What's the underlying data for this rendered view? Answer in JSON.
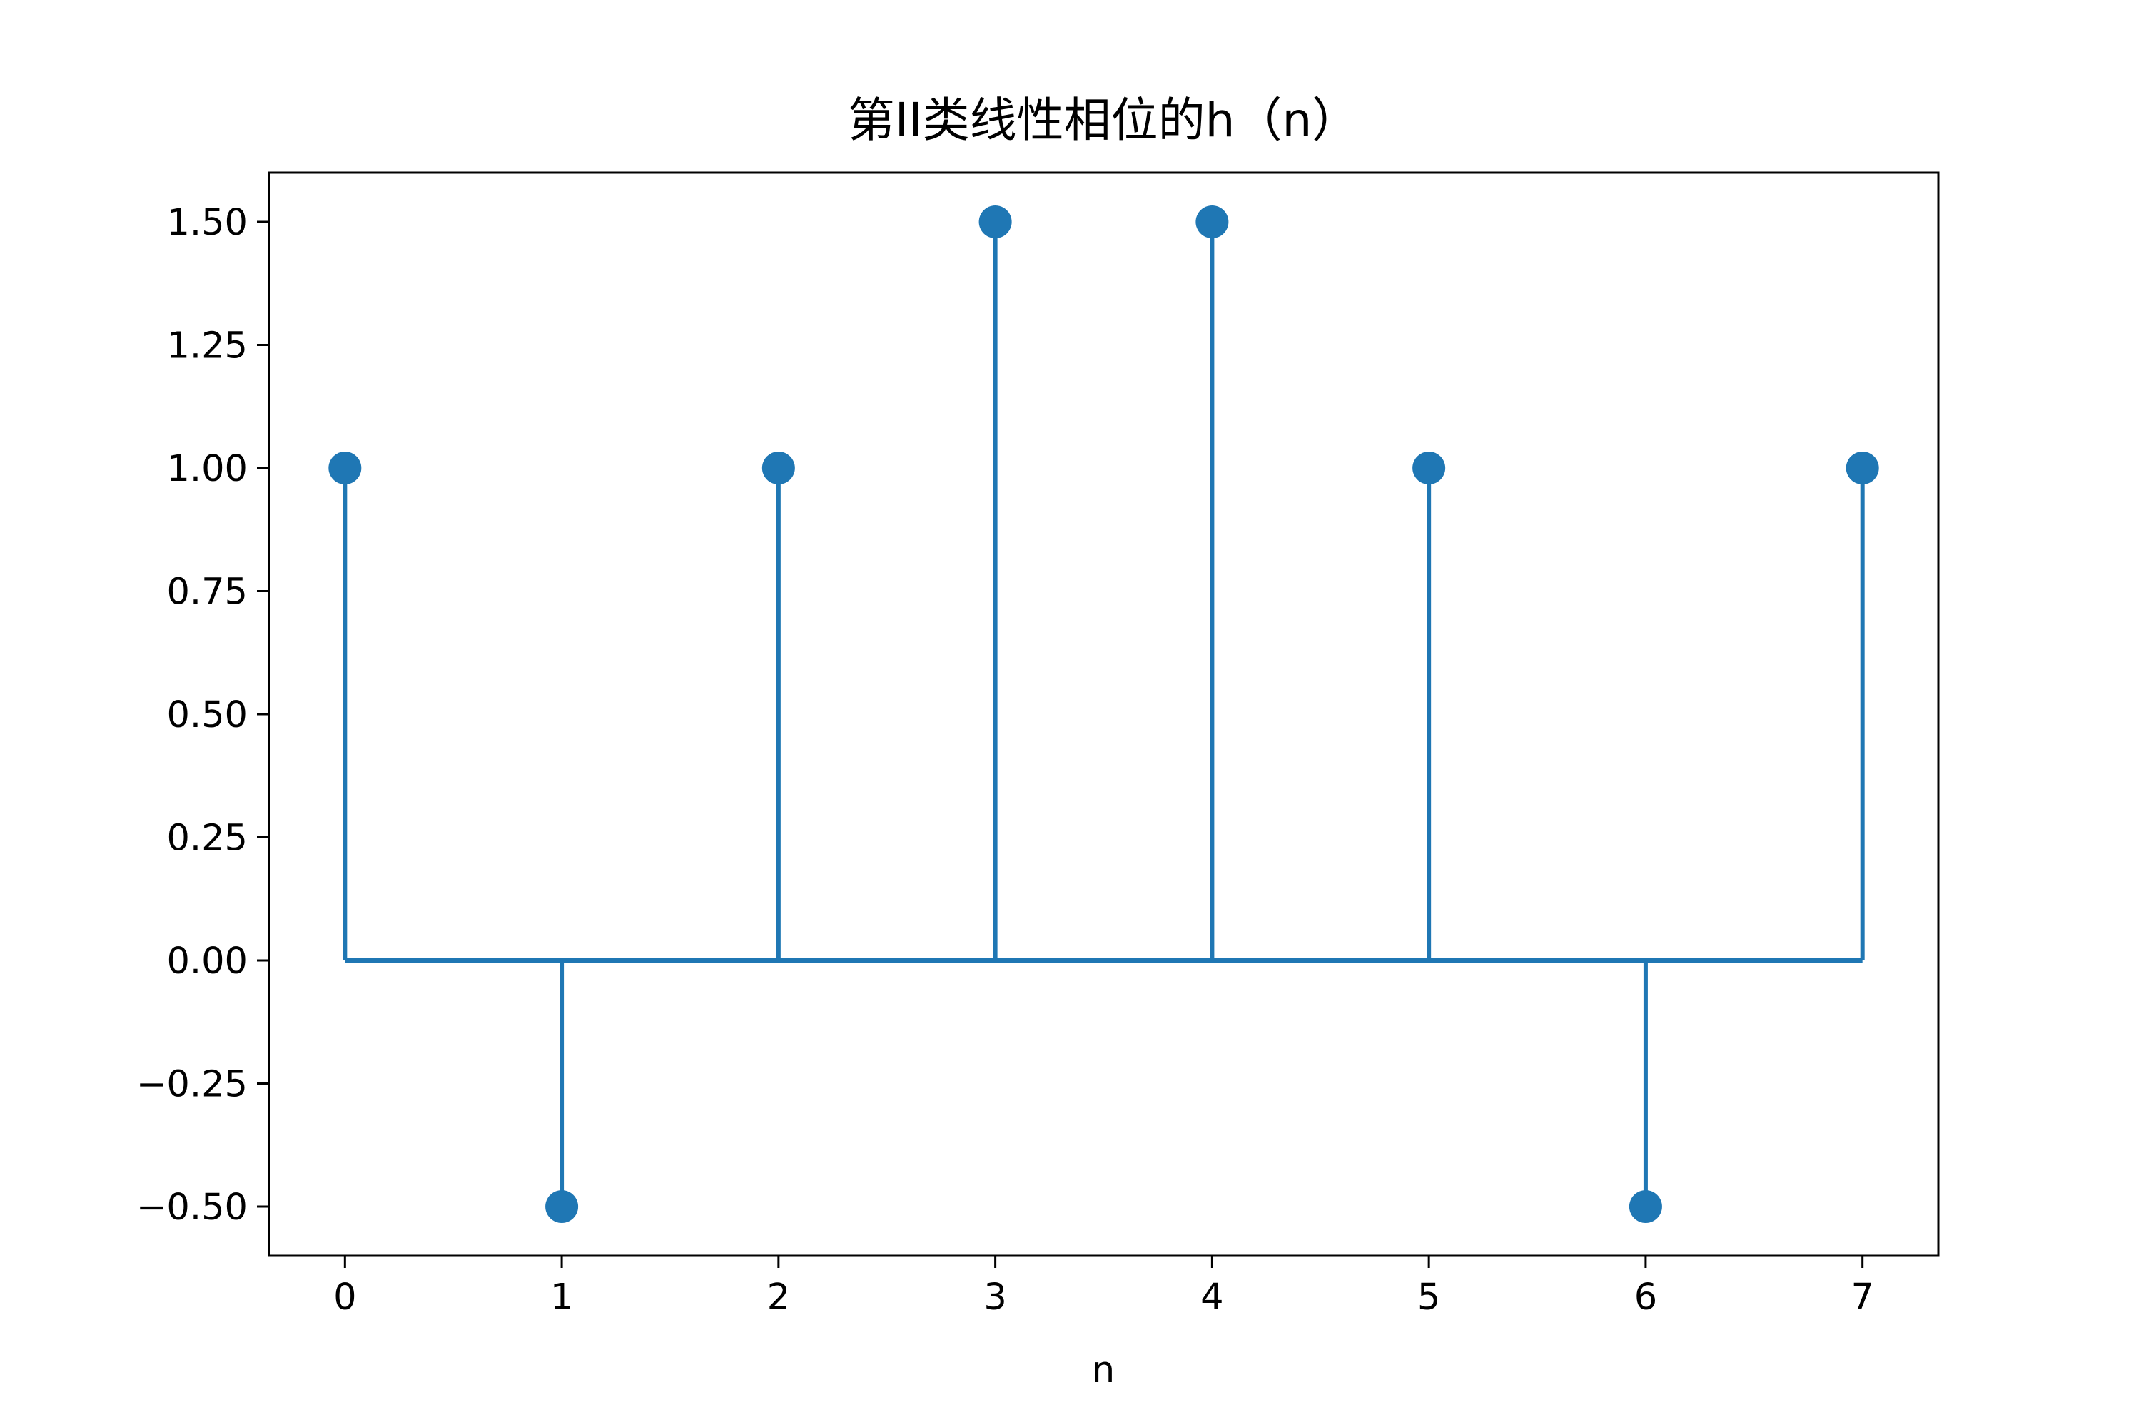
{
  "chart_data": {
    "type": "stem",
    "title": "第II类线性相位的h（n）",
    "xlabel": "n",
    "ylabel": "",
    "x": [
      0,
      1,
      2,
      3,
      4,
      5,
      6,
      7
    ],
    "values": [
      1.0,
      -0.5,
      1.0,
      1.5,
      1.5,
      1.0,
      -0.5,
      1.0
    ],
    "xlim": [
      -0.35,
      7.35
    ],
    "ylim": [
      -0.6,
      1.6
    ],
    "xticks": [
      0,
      1,
      2,
      3,
      4,
      5,
      6,
      7
    ],
    "xtick_labels": [
      "0",
      "1",
      "2",
      "3",
      "4",
      "5",
      "6",
      "7"
    ],
    "yticks": [
      -0.5,
      -0.25,
      0.0,
      0.25,
      0.5,
      0.75,
      1.0,
      1.25,
      1.5
    ],
    "ytick_labels": [
      "−0.50",
      "−0.25",
      "0.00",
      "0.25",
      "0.50",
      "0.75",
      "1.00",
      "1.25",
      "1.50"
    ],
    "baseline": 0,
    "grid": false,
    "color": "#1f77b4"
  }
}
